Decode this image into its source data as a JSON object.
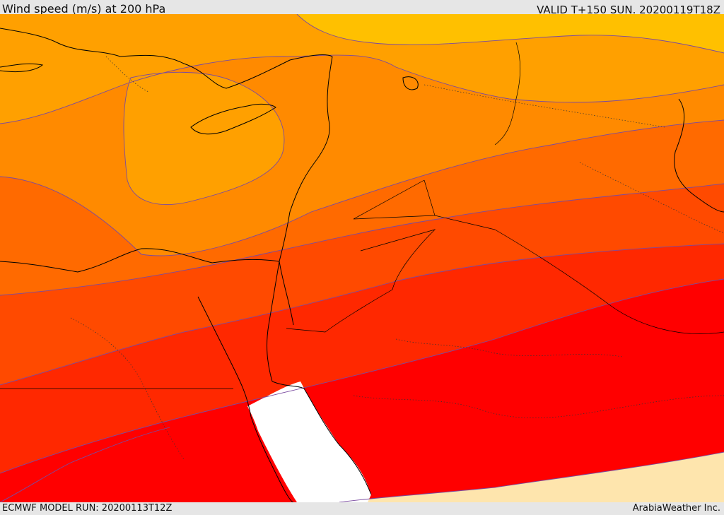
{
  "header": {
    "title": "Wind speed (m/s) at 200 hPa",
    "valid_time": "VALID T+150 SUN. 20200119T18Z"
  },
  "footer": {
    "model_run": "ECMWF MODEL RUN: 20200113T12Z",
    "credit": "ArabiaWeather Inc."
  },
  "map": {
    "variable": "wind speed at 200 hPa",
    "units": "m/s",
    "region": "Eastern Mediterranean, Egypt, Levant, Iraq and northern Saudi Arabia",
    "shading_colors": {
      "weakest_top": "#ffc000",
      "band_1": "#ffa000",
      "band_2": "#ff8a00",
      "band_3": "#ff6a00",
      "band_4": "#ff4a00",
      "band_5": "#ff2800",
      "jet_core": "#ff0000",
      "below_threshold": "#fee5ad",
      "red_sea_unshaded": "#ffffff"
    },
    "contour_line_color": "#7a4aa0",
    "coastline_color": "#000000"
  }
}
